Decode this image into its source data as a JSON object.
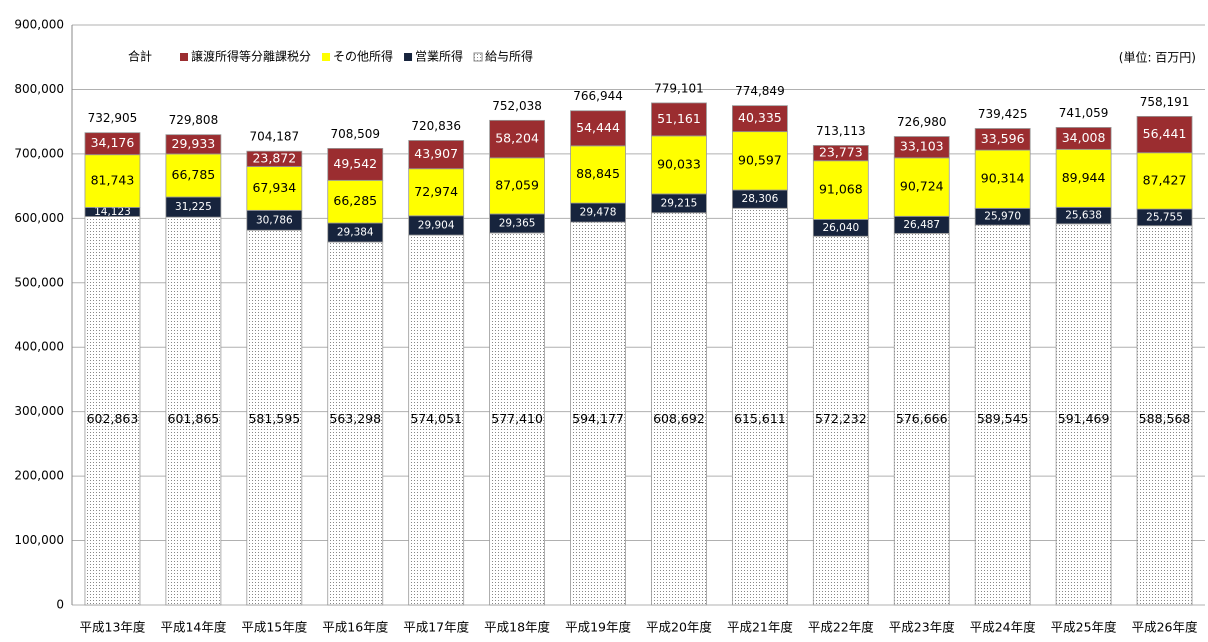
{
  "chart_data": {
    "type": "stacked_bar",
    "unit_note": "(単位: 百万円)",
    "categories": [
      "平成13年度",
      "平成14年度",
      "平成15年度",
      "平成16年度",
      "平成17年度",
      "平成18年度",
      "平成19年度",
      "平成20年度",
      "平成21年度",
      "平成22年度",
      "平成23年度",
      "平成24年度",
      "平成25年度",
      "平成26年度"
    ],
    "series": [
      {
        "name": "給与所得",
        "color": "#ffffff",
        "pattern": "dots",
        "values": [
          602863,
          601865,
          581595,
          563298,
          574051,
          577410,
          594177,
          608692,
          615611,
          572232,
          576666,
          589545,
          591469,
          588568
        ],
        "value_labels": [
          "602,863",
          "601,865",
          "581,595",
          "563,298",
          "574,051",
          "577,410",
          "594,177",
          "608,692",
          "615,611",
          "572,232",
          "576,666",
          "589,545",
          "591,469",
          "588,568"
        ]
      },
      {
        "name": "営業所得",
        "color": "#17243d",
        "values": [
          14123,
          31225,
          30786,
          29384,
          29904,
          29365,
          29478,
          29215,
          28306,
          26040,
          26487,
          25970,
          25638,
          25755
        ],
        "value_labels": [
          "14,123",
          "31,225",
          "30,786",
          "29,384",
          "29,904",
          "29,365",
          "29,478",
          "29,215",
          "28,306",
          "26,040",
          "26,487",
          "25,970",
          "25,638",
          "25,755"
        ]
      },
      {
        "name": "その他所得",
        "color": "#ffff00",
        "values": [
          81743,
          66785,
          67934,
          66285,
          72974,
          87059,
          88845,
          90033,
          90597,
          91068,
          90724,
          90314,
          89944,
          87427
        ],
        "value_labels": [
          "81,743",
          "66,785",
          "67,934",
          "66,285",
          "72,974",
          "87,059",
          "88,845",
          "90,033",
          "90,597",
          "91,068",
          "90,724",
          "90,314",
          "89,944",
          "87,427"
        ]
      },
      {
        "name": "譲渡所得等分離課税分",
        "color": "#9b2d30",
        "values": [
          34176,
          29933,
          23872,
          49542,
          43907,
          58204,
          54444,
          51161,
          40335,
          23773,
          33103,
          33596,
          34008,
          56441
        ],
        "value_labels": [
          "34,176",
          "29,933",
          "23,872",
          "49,542",
          "43,907",
          "58,204",
          "54,444",
          "51,161",
          "40,335",
          "23,773",
          "33,103",
          "33,596",
          "34,008",
          "56,441"
        ]
      }
    ],
    "total": {
      "name": "合計",
      "values": [
        732905,
        729808,
        704187,
        708509,
        720836,
        752038,
        766944,
        779101,
        774849,
        713113,
        726980,
        739425,
        741059,
        758191
      ],
      "value_labels": [
        "732,905",
        "729,808",
        "704,187",
        "708,509",
        "720,836",
        "752,038",
        "766,944",
        "779,101",
        "774,849",
        "713,113",
        "726,980",
        "739,425",
        "741,059",
        "758,191"
      ]
    },
    "ylim": [
      0,
      900000
    ],
    "yticks": [
      0,
      {
        "value": 100000,
        "label": "100,000"
      },
      {
        "value": 200000,
        "label": "200,000"
      },
      {
        "value": 300000,
        "label": "300,000"
      },
      {
        "value": 400000,
        "label": "400,000"
      },
      {
        "value": 500000,
        "label": "500,000"
      },
      {
        "value": 600000,
        "label": "600,000"
      },
      {
        "value": 700000,
        "label": "700,000"
      },
      {
        "value": 800000,
        "label": "800,000"
      },
      {
        "value": 900000,
        "label": "900,000"
      }
    ],
    "grid": true
  }
}
